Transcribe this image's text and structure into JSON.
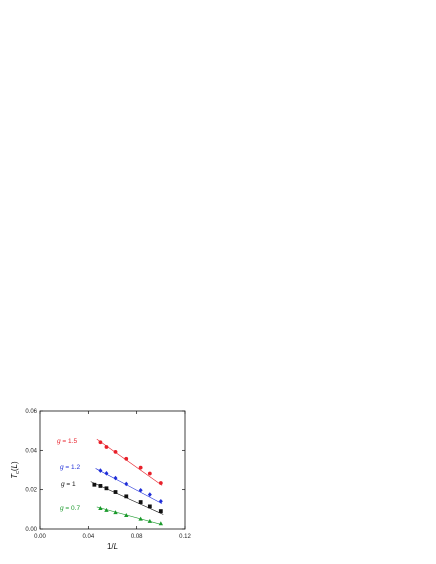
{
  "chart_data": {
    "type": "scatter",
    "title": "",
    "xlabel": "1/L",
    "ylabel": "T_c(L)",
    "xlim": [
      0.0,
      0.12
    ],
    "ylim": [
      0.0,
      0.06
    ],
    "x_ticks": [
      "0.00",
      "0.04",
      "0.08",
      "0.12"
    ],
    "y_ticks": [
      "0.00",
      "0.02",
      "0.04",
      "0.06"
    ],
    "grid": false,
    "legend": "none",
    "series": [
      {
        "name": "g = 1.5",
        "color": "#e8202a",
        "marker": "circle",
        "fit_line": [
          [
            0.047,
            0.0457
          ],
          [
            0.101,
            0.0222
          ]
        ],
        "x": [
          0.05,
          0.055,
          0.0625,
          0.0714,
          0.0833,
          0.0909,
          0.1
        ],
        "y": [
          0.0441,
          0.0417,
          0.0392,
          0.0357,
          0.0312,
          0.0282,
          0.0234
        ]
      },
      {
        "name": "g = 1.2",
        "color": "#1f2ed8",
        "marker": "diamond",
        "fit_line": [
          [
            0.046,
            0.0308
          ],
          [
            0.101,
            0.0129
          ]
        ],
        "x": [
          0.05,
          0.055,
          0.0625,
          0.0714,
          0.0833,
          0.0909,
          0.1
        ],
        "y": [
          0.0297,
          0.0283,
          0.0259,
          0.0229,
          0.0197,
          0.0175,
          0.0141
        ]
      },
      {
        "name": "g = 1",
        "color": "#111111",
        "marker": "square",
        "fit_line": [
          [
            0.042,
            0.0241
          ],
          [
            0.102,
            0.0074
          ]
        ],
        "x": [
          0.045,
          0.05,
          0.055,
          0.0625,
          0.0714,
          0.0833,
          0.0909,
          0.1
        ],
        "y": [
          0.0225,
          0.0219,
          0.0207,
          0.0188,
          0.0166,
          0.0137,
          0.0115,
          0.0091
        ]
      },
      {
        "name": "g = 0.7",
        "color": "#1a9a2b",
        "marker": "triangle",
        "fit_line": [
          [
            0.047,
            0.0112
          ],
          [
            0.101,
            0.0022
          ]
        ],
        "x": [
          0.05,
          0.055,
          0.0625,
          0.0714,
          0.0833,
          0.0909,
          0.1
        ],
        "y": [
          0.0105,
          0.0095,
          0.0084,
          0.0069,
          0.0051,
          0.0039,
          0.0027
        ]
      }
    ]
  }
}
